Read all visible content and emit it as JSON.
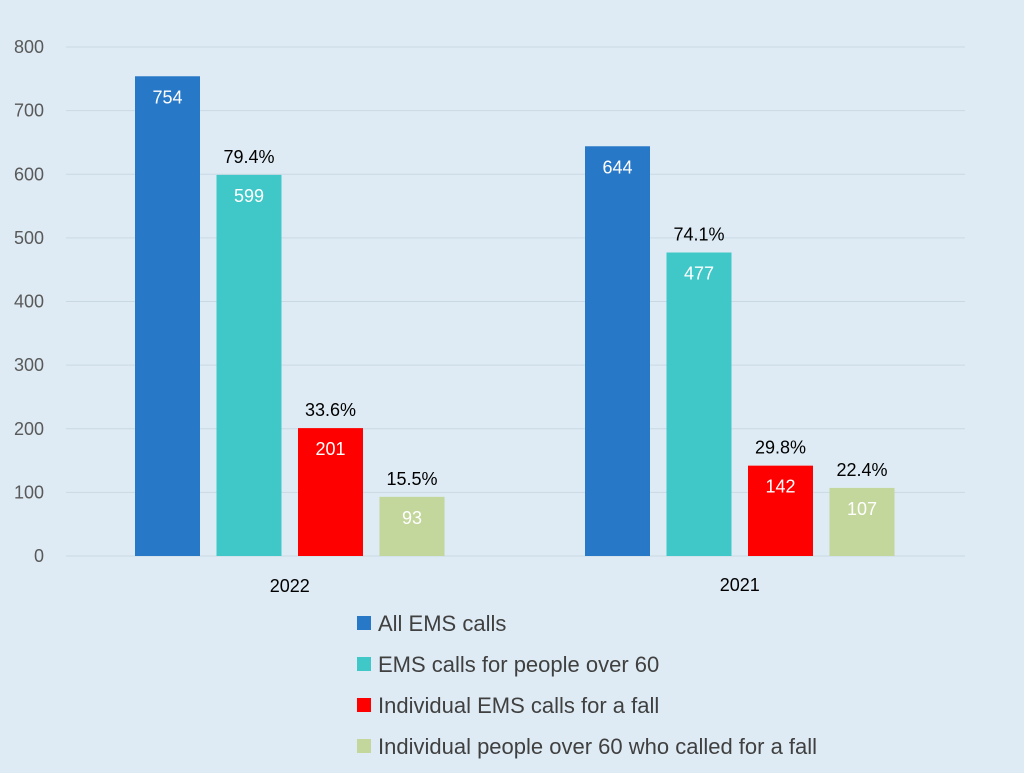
{
  "chart_data": {
    "type": "bar",
    "title": "",
    "xlabel": "",
    "ylabel": "",
    "ylim": [
      0,
      800
    ],
    "yticks": [
      0,
      100,
      200,
      300,
      400,
      500,
      600,
      700,
      800
    ],
    "grid": true,
    "legend_position": "bottom",
    "categories": [
      "2022",
      "2021"
    ],
    "series": [
      {
        "name": "All EMS calls",
        "color": "#2878c8",
        "values": [
          754,
          644
        ],
        "value_labels": [
          "754",
          "644"
        ],
        "percent_labels": [
          "",
          ""
        ]
      },
      {
        "name": "EMS calls for people over 60",
        "color": "#40c8c8",
        "values": [
          599,
          477
        ],
        "value_labels": [
          "599",
          "477"
        ],
        "percent_labels": [
          "79.4%",
          "74.1%"
        ]
      },
      {
        "name": "Individual EMS calls for a fall",
        "color": "#ff0000",
        "values": [
          201,
          142
        ],
        "value_labels": [
          "201",
          "142"
        ],
        "percent_labels": [
          "33.6%",
          "29.8%"
        ]
      },
      {
        "name": "Individual people over 60 who called for a fall",
        "color": "#c3d69b",
        "values": [
          93,
          107
        ],
        "value_labels": [
          "93",
          "107"
        ],
        "percent_labels": [
          "15.5%",
          "22.4%"
        ]
      }
    ]
  }
}
